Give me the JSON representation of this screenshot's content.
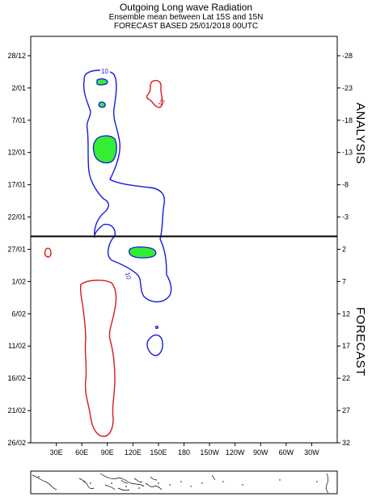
{
  "header": {
    "title": "Outgoing Long wave Radiation",
    "subtitle": "Ensemble mean between  Lat 15S and 15N",
    "forecast_line": "FORECAST  BASED 25/01/2018 00UTC"
  },
  "chart_data": {
    "type": "contour",
    "title": "Outgoing Long wave Radiation",
    "subtitle": "Ensemble mean between  Lat 15S and 15N",
    "x_axis": {
      "tick_labels": [
        "30E",
        "60E",
        "90E",
        "120E",
        "150E",
        "180",
        "150W",
        "120W",
        "90W",
        "60W",
        "30W"
      ],
      "tick_lon": [
        30,
        60,
        90,
        120,
        150,
        180,
        210,
        240,
        270,
        300,
        330
      ],
      "range_lon": [
        0,
        360
      ]
    },
    "y_axis_left": {
      "tick_labels": [
        "28/12",
        "2/01",
        "7/01",
        "12/01",
        "17/01",
        "22/01",
        "27/01",
        "1/02",
        "6/02",
        "11/02",
        "16/02",
        "21/02",
        "26/02"
      ],
      "tick_days": [
        -28,
        -23,
        -18,
        -13,
        -8,
        -3,
        2,
        7,
        12,
        17,
        22,
        27,
        32
      ],
      "range_days": [
        -31,
        32
      ]
    },
    "y_axis_right": {
      "tick_labels": [
        "-28",
        "-23",
        "-18",
        "-13",
        "-8",
        "-3",
        "2",
        "7",
        "12",
        "17",
        "22",
        "27",
        "32"
      ],
      "tick_days": [
        -28,
        -23,
        -18,
        -13,
        -8,
        -3,
        2,
        7,
        12,
        17,
        22,
        27,
        32
      ]
    },
    "divider_day": 0,
    "panels": {
      "analysis_label": "ANALYSIS",
      "forecast_label": "FORECAST"
    },
    "contour_labels": [
      "10",
      "10",
      "10"
    ],
    "colors": {
      "negative_contour": "#1a1adb",
      "positive_contour": "#d41a1a",
      "shading": "#33ee33",
      "divider": "#000000"
    },
    "map_strip": true
  }
}
